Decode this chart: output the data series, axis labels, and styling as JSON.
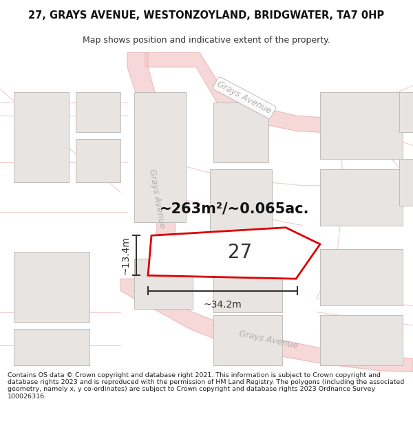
{
  "title": "27, GRAYS AVENUE, WESTONZOYLAND, BRIDGWATER, TA7 0HP",
  "subtitle": "Map shows position and indicative extent of the property.",
  "footer": "Contains OS data © Crown copyright and database right 2021. This information is subject to Crown copyright and database rights 2023 and is reproduced with the permission of HM Land Registry. The polygons (including the associated geometry, namely x, y co-ordinates) are subject to Crown copyright and database rights 2023 Ordnance Survey 100026316.",
  "background_color": "#ffffff",
  "map_bg": "#ffffff",
  "area_label": "~263m²/~0.065ac.",
  "plot_number": "27",
  "width_label": "~34.2m",
  "height_label": "~13.4m",
  "road_color": "#f5c8c8",
  "road_edge_color": "#e8a8a8",
  "building_color": "#e8e4e2",
  "building_stroke": "#c0bcba",
  "plot_fill": "#ffffff",
  "plot_stroke": "#dd0000",
  "road_label_color": "#b0b0b0",
  "annotation_color": "#333333",
  "road_lw": 1.0,
  "road_fill_alpha": 0.5,
  "title_fontsize": 10.5,
  "subtitle_fontsize": 9,
  "footer_fontsize": 6.8
}
